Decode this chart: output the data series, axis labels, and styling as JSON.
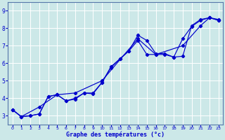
{
  "xlabel": "Graphe des températures (°c)",
  "background_color": "#cce8e8",
  "plot_bg_color": "#cce8e8",
  "grid_color": "#aacccc",
  "line_color": "#0000cc",
  "xlim": [
    -0.5,
    23.5
  ],
  "ylim": [
    2.5,
    9.5
  ],
  "xticks": [
    0,
    1,
    2,
    3,
    4,
    5,
    6,
    7,
    8,
    9,
    10,
    11,
    12,
    13,
    14,
    15,
    16,
    17,
    18,
    19,
    20,
    21,
    22,
    23
  ],
  "yticks": [
    3,
    4,
    5,
    6,
    7,
    8,
    9
  ],
  "line1_x": [
    0,
    1,
    2,
    3,
    4,
    5,
    6,
    7,
    8,
    9,
    10,
    11,
    12,
    13,
    14,
    15,
    16,
    17,
    18,
    19,
    20,
    21,
    22,
    23
  ],
  "line1_y": [
    3.35,
    2.95,
    3.0,
    3.1,
    4.1,
    4.2,
    3.85,
    3.95,
    4.3,
    4.25,
    4.9,
    5.8,
    6.25,
    6.7,
    7.6,
    7.3,
    6.55,
    6.55,
    6.35,
    6.4,
    8.15,
    8.5,
    8.6,
    8.5
  ],
  "line2_x": [
    0,
    1,
    2,
    3,
    4,
    5,
    6,
    7,
    8,
    9,
    10,
    11,
    12,
    13,
    14,
    15,
    16,
    17,
    18,
    19,
    20,
    21,
    22,
    23
  ],
  "line2_y": [
    3.35,
    2.95,
    3.0,
    3.1,
    4.1,
    4.2,
    3.85,
    4.0,
    4.3,
    4.3,
    4.9,
    5.75,
    6.25,
    6.7,
    7.3,
    6.5,
    6.5,
    6.5,
    6.35,
    7.4,
    8.1,
    8.45,
    8.6,
    8.45
  ],
  "line3_x": [
    0,
    1,
    3,
    5,
    7,
    10,
    14,
    16,
    19,
    21,
    22,
    23
  ],
  "line3_y": [
    3.35,
    2.95,
    3.5,
    4.2,
    4.3,
    5.0,
    7.4,
    6.5,
    7.0,
    8.15,
    8.6,
    8.45
  ]
}
